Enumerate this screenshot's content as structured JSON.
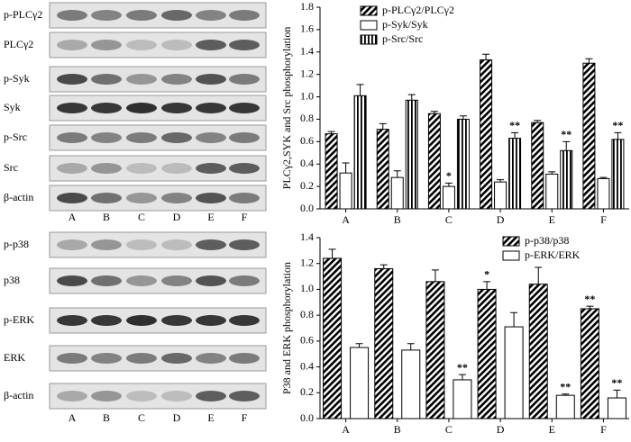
{
  "chart_data": [
    {
      "type": "bar",
      "ylabel": "PLCγ2,SYK and Src phosphorylation",
      "categories": [
        "A",
        "B",
        "C",
        "D",
        "E",
        "F"
      ],
      "series": [
        {
          "name": "p-PLCγ2/PLCγ2",
          "color": "#000000",
          "hatch": "diagonal",
          "values": [
            0.67,
            0.71,
            0.85,
            1.33,
            0.77,
            1.3
          ],
          "errors": [
            0.02,
            0.05,
            0.02,
            0.05,
            0.02,
            0.04
          ]
        },
        {
          "name": "p-Syk/Syk",
          "color": "#000000",
          "hatch": "none",
          "values": [
            0.32,
            0.28,
            0.2,
            0.24,
            0.31,
            0.27
          ],
          "errors": [
            0.09,
            0.06,
            0.03,
            0.02,
            0.02,
            0.01
          ]
        },
        {
          "name": "p-Src/Src",
          "color": "#000000",
          "hatch": "vertical",
          "values": [
            1.01,
            0.97,
            0.8,
            0.63,
            0.52,
            0.62
          ],
          "errors": [
            0.1,
            0.05,
            0.03,
            0.05,
            0.08,
            0.06
          ]
        }
      ],
      "annotations": [
        {
          "text": "*",
          "series": 1,
          "category": 2
        },
        {
          "text": "**",
          "series": 2,
          "category": 3
        },
        {
          "text": "**",
          "series": 2,
          "category": 4
        },
        {
          "text": "**",
          "series": 2,
          "category": 5
        }
      ],
      "ylim": [
        0,
        1.8
      ],
      "yticks": [
        {
          "value": 0,
          "label": "0.0"
        },
        0.2,
        0.4,
        0.6,
        0.8,
        {
          "value": 1,
          "label": "1.0"
        },
        1.2,
        1.4,
        1.6,
        1.8
      ],
      "legend": "upper left"
    },
    {
      "type": "bar",
      "ylabel": "P38 and ERK phosphorylation",
      "categories": [
        "A",
        "B",
        "C",
        "D",
        "E",
        "F"
      ],
      "series": [
        {
          "name": "p-p38/p38",
          "color": "#000000",
          "hatch": "diagonal",
          "values": [
            1.24,
            1.16,
            1.06,
            1.0,
            1.04,
            0.85
          ],
          "errors": [
            0.07,
            0.03,
            0.09,
            0.06,
            0.13,
            0.02
          ]
        },
        {
          "name": "p-ERK/ERK",
          "color": "#000000",
          "hatch": "none",
          "values": [
            0.55,
            0.53,
            0.3,
            0.71,
            0.18,
            0.16
          ],
          "errors": [
            0.03,
            0.05,
            0.04,
            0.11,
            0.01,
            0.06
          ]
        }
      ],
      "annotations": [
        {
          "text": "*",
          "series": 0,
          "category": 3
        },
        {
          "text": "**",
          "series": 0,
          "category": 5
        },
        {
          "text": "**",
          "series": 1,
          "category": 2
        },
        {
          "text": "**",
          "series": 1,
          "category": 4
        },
        {
          "text": "**",
          "series": 1,
          "category": 5
        }
      ],
      "ylim": [
        0,
        1.4
      ],
      "yticks": [
        {
          "value": 0,
          "label": "0.0"
        },
        0.2,
        0.4,
        0.6,
        0.8,
        {
          "value": 1,
          "label": "1.0"
        },
        1.2,
        1.4
      ],
      "legend": "upper right"
    }
  ],
  "blots": [
    {
      "rows": [
        "p-PLCγ2",
        "PLCγ2",
        "p-Syk",
        "Syk",
        "p-Src",
        "Src",
        "β-actin"
      ],
      "lanes": [
        "A",
        "B",
        "C",
        "D",
        "E",
        "F"
      ]
    },
    {
      "rows": [
        "p-p38",
        "p38",
        "p-ERK",
        "ERK",
        "β-actin"
      ],
      "lanes": [
        "A",
        "B",
        "C",
        "D",
        "E",
        "F"
      ]
    }
  ]
}
